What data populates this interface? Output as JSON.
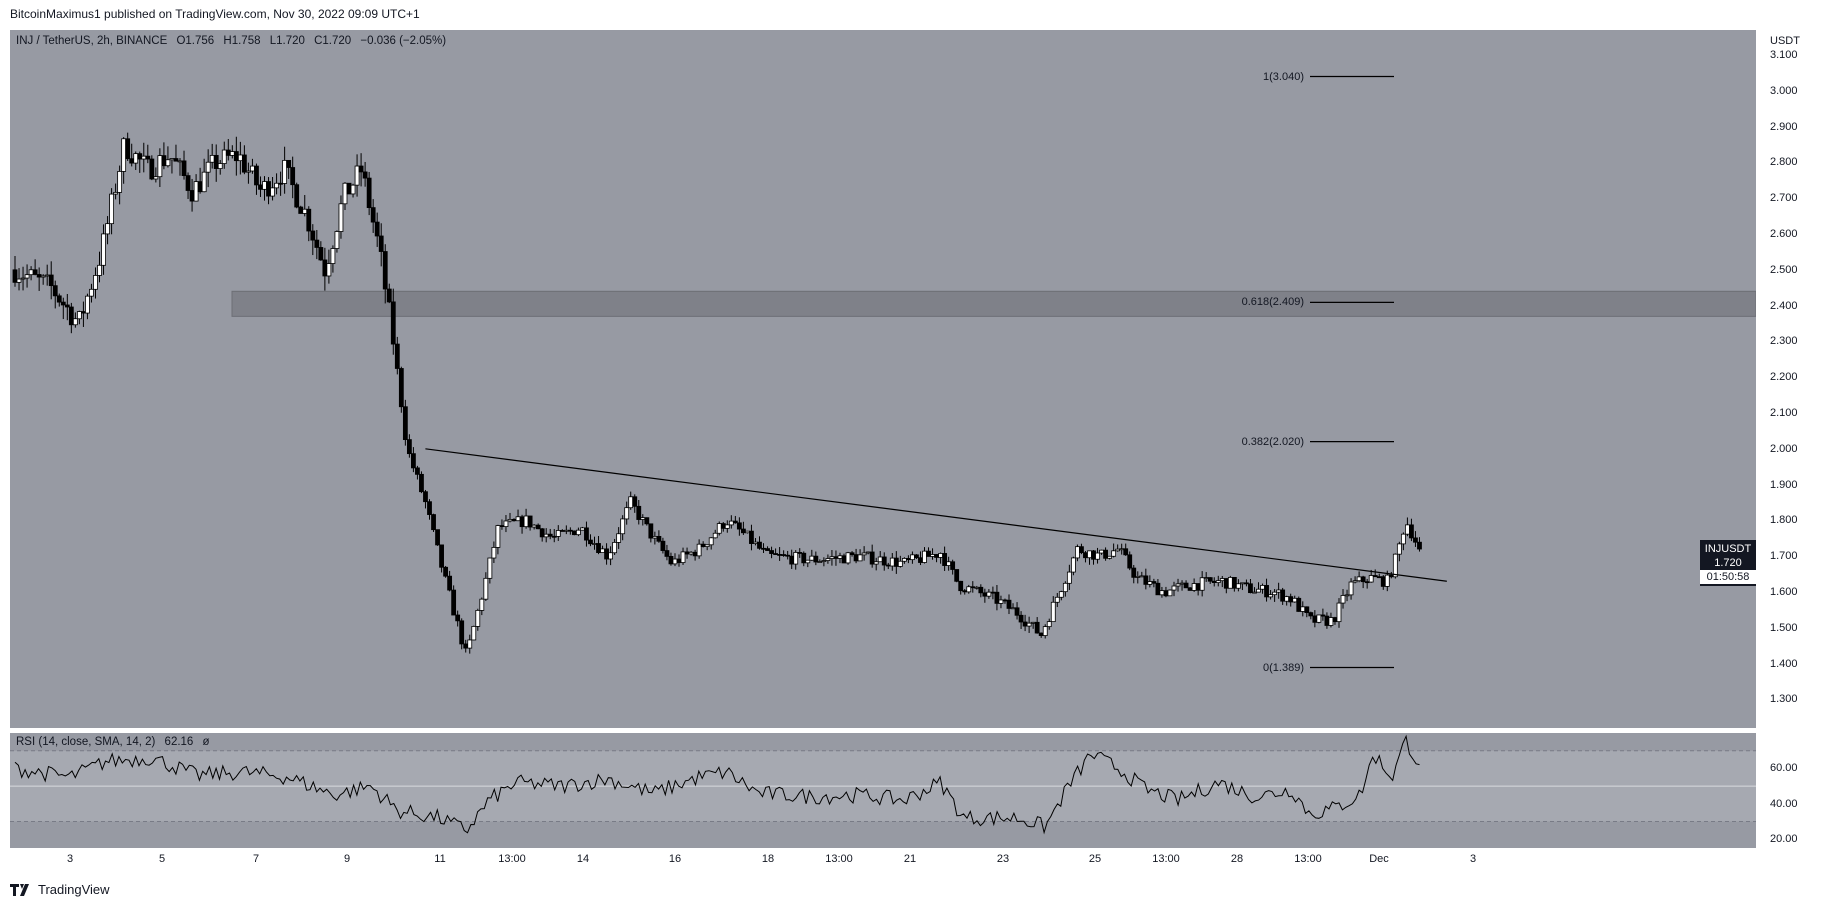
{
  "publisher_line": "BitcoinMaximus1 published on TradingView.com, Nov 30, 2022 09:09 UTC+1",
  "footer_brand": "TradingView",
  "colors": {
    "panel_bg": "#979aa3",
    "candle_up": "#ffffff",
    "candle_down": "#000000",
    "zone": "#7f8189",
    "line": "#000000"
  },
  "legend": {
    "symbol": "INJ / TetherUS, 2h, BINANCE",
    "open": "O1.756",
    "high": "H1.758",
    "low": "L1.720",
    "close": "C1.720",
    "change": "−0.036 (−2.05%)"
  },
  "rsi_legend": {
    "label": "RSI (14, close, SMA, 14, 2)",
    "value": "62.16",
    "extra": "ø"
  },
  "price_tag": {
    "symbol": "INJUSDT",
    "price": "1.720",
    "timer": "01:50:58"
  },
  "chart_data": [
    {
      "type": "candlestick",
      "title": "INJ / TetherUS, 2h, BINANCE",
      "unit": "USDT",
      "ylim": [
        1.22,
        3.17
      ],
      "y_ticks": [
        "3.100",
        "3.000",
        "2.900",
        "2.800",
        "2.700",
        "2.600",
        "2.500",
        "2.400",
        "2.300",
        "2.200",
        "2.100",
        "2.000",
        "1.900",
        "1.800",
        "1.700",
        "1.600",
        "1.500",
        "1.400",
        "1.300"
      ],
      "x_ticks": [
        "3",
        "5",
        "7",
        "9",
        "11",
        "13:00",
        "14",
        "16",
        "18",
        "13:00",
        "21",
        "23",
        "25",
        "13:00",
        "28",
        "13:00",
        "Dec",
        "3"
      ],
      "price_path": [
        [
          0,
          2.5
        ],
        [
          0.8,
          2.45
        ],
        [
          1.4,
          2.35
        ],
        [
          1.9,
          2.55
        ],
        [
          2.4,
          2.85
        ],
        [
          2.9,
          2.78
        ],
        [
          3.4,
          2.82
        ],
        [
          3.9,
          2.72
        ],
        [
          4.4,
          2.8
        ],
        [
          4.9,
          2.82
        ],
        [
          5.4,
          2.72
        ],
        [
          5.9,
          2.78
        ],
        [
          6.4,
          2.65
        ],
        [
          6.8,
          2.5
        ],
        [
          7.2,
          2.7
        ],
        [
          7.6,
          2.78
        ],
        [
          8.0,
          2.55
        ],
        [
          8.3,
          2.3
        ],
        [
          8.6,
          2.0
        ],
        [
          9.0,
          1.85
        ],
        [
          9.4,
          1.65
        ],
        [
          9.9,
          1.42
        ],
        [
          10.3,
          1.62
        ],
        [
          10.6,
          1.78
        ],
        [
          11.2,
          1.8
        ],
        [
          11.8,
          1.75
        ],
        [
          12.4,
          1.78
        ],
        [
          13.0,
          1.7
        ],
        [
          13.5,
          1.85
        ],
        [
          14.0,
          1.75
        ],
        [
          14.4,
          1.68
        ],
        [
          15.0,
          1.72
        ],
        [
          15.6,
          1.8
        ],
        [
          16.0,
          1.76
        ],
        [
          16.5,
          1.7
        ],
        [
          17.5,
          1.69
        ],
        [
          18.5,
          1.7
        ],
        [
          19.5,
          1.68
        ],
        [
          20.3,
          1.71
        ],
        [
          20.7,
          1.62
        ],
        [
          21.5,
          1.58
        ],
        [
          22.0,
          1.54
        ],
        [
          22.5,
          1.48
        ],
        [
          22.9,
          1.6
        ],
        [
          23.3,
          1.72
        ],
        [
          23.8,
          1.7
        ],
        [
          24.2,
          1.72
        ],
        [
          24.6,
          1.64
        ],
        [
          25.2,
          1.6
        ],
        [
          25.8,
          1.62
        ],
        [
          26.5,
          1.63
        ],
        [
          27.0,
          1.61
        ],
        [
          27.6,
          1.6
        ],
        [
          28.0,
          1.58
        ],
        [
          28.4,
          1.52
        ],
        [
          28.9,
          1.52
        ],
        [
          29.3,
          1.62
        ],
        [
          29.7,
          1.64
        ],
        [
          30.1,
          1.63
        ],
        [
          30.3,
          1.7
        ],
        [
          30.5,
          1.8
        ],
        [
          30.8,
          1.72
        ]
      ],
      "descending_trendline": {
        "from": [
          9.0,
          2.0
        ],
        "to": [
          31.4,
          1.63
        ]
      },
      "resistance_zone": [
        2.37,
        2.44
      ],
      "fibonacci": [
        {
          "label": "1(3.040)",
          "value": 3.04
        },
        {
          "label": "0.618(2.409)",
          "value": 2.409
        },
        {
          "label": "0.382(2.020)",
          "value": 2.02
        },
        {
          "label": "0(1.389)",
          "value": 1.389
        }
      ],
      "last_price": 1.72
    },
    {
      "type": "line",
      "title": "RSI (14, close, SMA, 14, 2)",
      "ylim": [
        15,
        80
      ],
      "y_ticks": [
        "60.00",
        "40.00",
        "20.00"
      ],
      "bands": [
        70,
        50,
        30
      ],
      "rsi_path": [
        [
          0,
          60
        ],
        [
          1.2,
          55
        ],
        [
          2,
          64
        ],
        [
          3,
          66
        ],
        [
          4,
          56
        ],
        [
          5,
          58
        ],
        [
          6,
          55
        ],
        [
          7,
          45
        ],
        [
          7.8,
          50
        ],
        [
          8.4,
          36
        ],
        [
          9.3,
          32
        ],
        [
          9.9,
          25
        ],
        [
          10.4,
          42
        ],
        [
          11,
          52
        ],
        [
          12,
          50
        ],
        [
          13,
          54
        ],
        [
          14,
          46
        ],
        [
          15,
          55
        ],
        [
          15.6,
          58
        ],
        [
          16.3,
          46
        ],
        [
          17.5,
          44
        ],
        [
          18.5,
          45
        ],
        [
          19.5,
          42
        ],
        [
          20.3,
          52
        ],
        [
          20.8,
          32
        ],
        [
          22,
          32
        ],
        [
          22.6,
          27
        ],
        [
          23.1,
          50
        ],
        [
          23.6,
          68
        ],
        [
          24.2,
          60
        ],
        [
          24.8,
          48
        ],
        [
          25.5,
          42
        ],
        [
          26.4,
          52
        ],
        [
          27.2,
          44
        ],
        [
          28,
          48
        ],
        [
          28.4,
          34
        ],
        [
          29,
          38
        ],
        [
          29.5,
          45
        ],
        [
          29.8,
          68
        ],
        [
          30.2,
          55
        ],
        [
          30.5,
          76
        ],
        [
          30.8,
          62
        ]
      ]
    }
  ]
}
